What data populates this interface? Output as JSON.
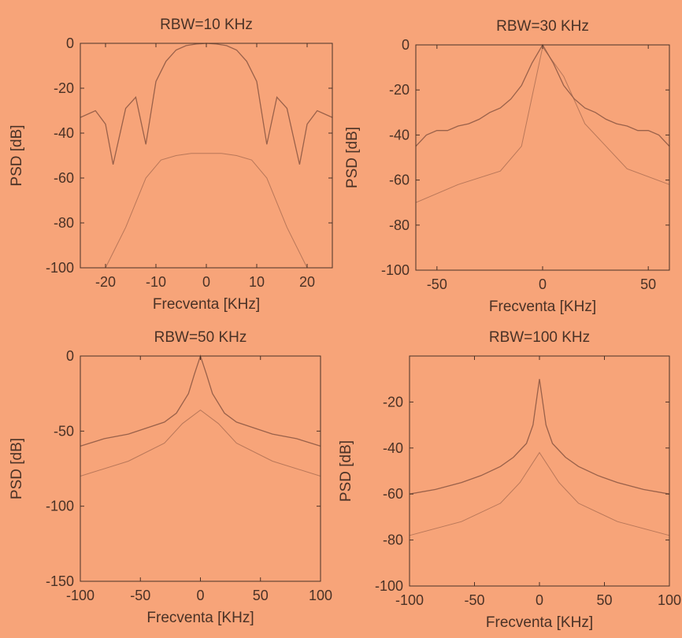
{
  "theme": {
    "background": "#f7a479",
    "axis_color": "#4a3226",
    "trace_color": "#8f5a45"
  },
  "chart_data": [
    {
      "type": "line",
      "title": "RBW=10 KHz",
      "xlabel": "Frecventa [KHz]",
      "ylabel": "PSD [dB]",
      "xlim": [
        -25,
        25
      ],
      "ylim": [
        -100,
        0
      ],
      "xticks": [
        -20,
        -10,
        0,
        10,
        20
      ],
      "yticks": [
        0,
        -20,
        -40,
        -60,
        -80,
        -100
      ],
      "xtick_labels": [
        "-20",
        "-10",
        "0",
        "10",
        "20"
      ],
      "ytick_labels": [
        "0",
        "-20",
        "-40",
        "-60",
        "-80",
        "-100"
      ],
      "grid": false,
      "series": [
        {
          "x": [
            -25,
            -22,
            -20,
            -18.5,
            -16,
            -14,
            -12,
            -10,
            -8,
            -6,
            -4,
            -2,
            0,
            2,
            4,
            6,
            8,
            10,
            12,
            14,
            16,
            18.5,
            20,
            22,
            25
          ],
          "y": [
            -33,
            -30,
            -36,
            -54,
            -29,
            -24,
            -45,
            -17,
            -8,
            -3,
            -1,
            -0.3,
            0,
            -0.3,
            -1,
            -3,
            -8,
            -17,
            -45,
            -24,
            -29,
            -54,
            -36,
            -30,
            -33
          ]
        },
        {
          "x": [
            -20,
            -16,
            -12,
            -9,
            -6,
            -3,
            0,
            3,
            6,
            9,
            12,
            16,
            20
          ],
          "y": [
            -100,
            -82,
            -60,
            -52,
            -50,
            -49,
            -49,
            -49,
            -50,
            -52,
            -60,
            -82,
            -100
          ]
        }
      ]
    },
    {
      "type": "line",
      "title": "RBW=30 KHz",
      "xlabel": "Frecventa [KHz]",
      "ylabel": "PSD [dB]",
      "xlim": [
        -60,
        60
      ],
      "ylim": [
        -100,
        0
      ],
      "xticks": [
        -50,
        0,
        50
      ],
      "yticks": [
        0,
        -20,
        -40,
        -60,
        -80,
        -100
      ],
      "xtick_labels": [
        "-50",
        "0",
        "50"
      ],
      "ytick_labels": [
        "0",
        "-20",
        "-40",
        "-60",
        "-80",
        "-100"
      ],
      "grid": false,
      "series": [
        {
          "x": [
            -60,
            -55,
            -50,
            -45,
            -40,
            -35,
            -30,
            -25,
            -20,
            -15,
            -10,
            -5,
            0,
            5,
            10,
            15,
            20,
            25,
            30,
            35,
            40,
            45,
            50,
            55,
            60
          ],
          "y": [
            -45,
            -40,
            -38,
            -38,
            -36,
            -35,
            -33,
            -30,
            -28,
            -24,
            -18,
            -8,
            0,
            -8,
            -18,
            -24,
            -28,
            -30,
            -33,
            -35,
            -36,
            -38,
            -38,
            -40,
            -45
          ]
        },
        {
          "x": [
            -60,
            -40,
            -20,
            -10,
            0,
            10,
            20,
            40,
            60
          ],
          "y": [
            -70,
            -62,
            -56,
            -45,
            -1,
            -14,
            -35,
            -55,
            -62
          ]
        }
      ]
    },
    {
      "type": "line",
      "title": "RBW=50 KHz",
      "xlabel": "Frecventa [KHz]",
      "ylabel": "PSD [dB]",
      "xlim": [
        -100,
        100
      ],
      "ylim": [
        -150,
        0
      ],
      "xticks": [
        -100,
        -50,
        0,
        50,
        100
      ],
      "yticks": [
        0,
        -50,
        -100,
        -150
      ],
      "xtick_labels": [
        "-100",
        "-50",
        "0",
        "50",
        "100"
      ],
      "ytick_labels": [
        "0",
        "-50",
        "-100",
        "-150"
      ],
      "grid": false,
      "series": [
        {
          "x": [
            -100,
            -80,
            -60,
            -45,
            -30,
            -20,
            -10,
            -5,
            0,
            5,
            10,
            20,
            30,
            45,
            60,
            80,
            100
          ],
          "y": [
            -60,
            -55,
            -52,
            -48,
            -44,
            -38,
            -25,
            -12,
            0,
            -12,
            -25,
            -38,
            -44,
            -48,
            -52,
            -55,
            -60
          ]
        },
        {
          "x": [
            -100,
            -60,
            -30,
            -15,
            0,
            15,
            30,
            60,
            100
          ],
          "y": [
            -80,
            -70,
            -58,
            -45,
            -36,
            -45,
            -58,
            -70,
            -80
          ]
        }
      ]
    },
    {
      "type": "line",
      "title": "RBW=100 KHz",
      "xlabel": "Frecventa [KHz]",
      "ylabel": "PSD [dB]",
      "xlim": [
        -100,
        100
      ],
      "ylim": [
        -100,
        0
      ],
      "xticks": [
        -100,
        -50,
        0,
        50,
        100
      ],
      "yticks": [
        -20,
        -40,
        -60,
        -80,
        -100
      ],
      "xtick_labels": [
        "-100",
        "-50",
        "0",
        "50",
        "100"
      ],
      "ytick_labels": [
        "-20",
        "-40",
        "-60",
        "-80",
        "-100"
      ],
      "grid": false,
      "series": [
        {
          "x": [
            -100,
            -80,
            -60,
            -45,
            -30,
            -20,
            -10,
            -5,
            0,
            5,
            10,
            20,
            30,
            45,
            60,
            80,
            100
          ],
          "y": [
            -60,
            -58,
            -55,
            -52,
            -48,
            -44,
            -38,
            -30,
            -10,
            -30,
            -38,
            -44,
            -48,
            -52,
            -55,
            -58,
            -60
          ]
        },
        {
          "x": [
            -100,
            -60,
            -30,
            -15,
            0,
            15,
            30,
            60,
            100
          ],
          "y": [
            -78,
            -72,
            -64,
            -55,
            -42,
            -55,
            -64,
            -72,
            -78
          ]
        }
      ]
    }
  ]
}
